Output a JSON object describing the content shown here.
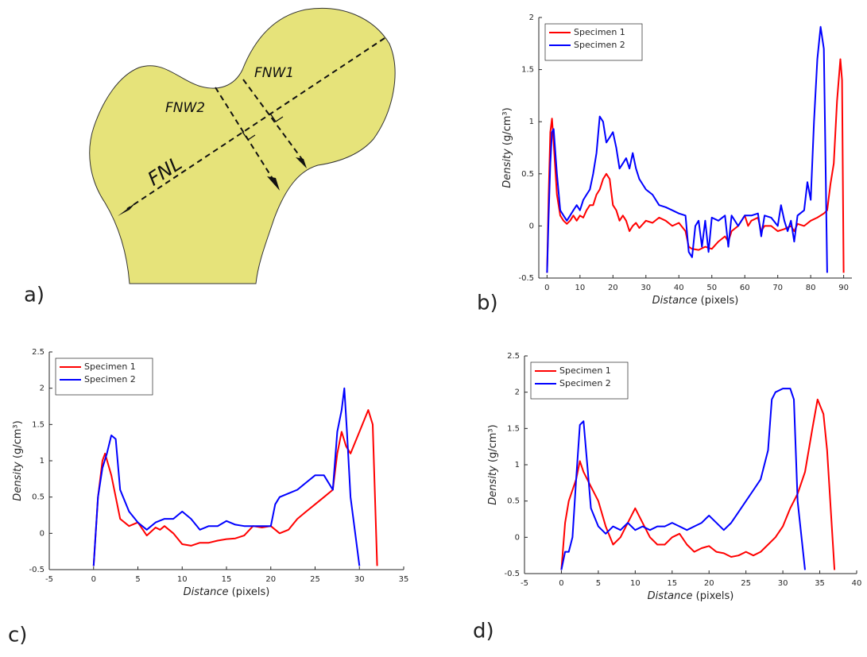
{
  "diagram": {
    "panel_label": "a)",
    "labels": {
      "fnw1": "FNW1",
      "fnw2": "FNW2",
      "fnl": "FNL"
    }
  },
  "chart_data": [
    {
      "type": "line",
      "panel_label": "b)",
      "xlabel": {
        "name": "Distance",
        "unit": "(pixels)"
      },
      "ylabel": {
        "name": "Density",
        "unit": "(g/cm³)"
      },
      "xlim": [
        -2.5,
        92.5
      ],
      "ylim": [
        -0.5,
        2
      ],
      "xticks": [
        0,
        10,
        20,
        30,
        40,
        50,
        60,
        70,
        80,
        90
      ],
      "yticks": [
        -0.5,
        0,
        0.5,
        1,
        1.5,
        2
      ],
      "grid": false,
      "legend": "upper left",
      "series": [
        {
          "name": "Specimen 1",
          "color": "#ff0000",
          "x": [
            0,
            0.5,
            1,
            1.5,
            2,
            3,
            4,
            5,
            6,
            7,
            8,
            9,
            10,
            11,
            12,
            13,
            14,
            15,
            16,
            17,
            18,
            19,
            20,
            21,
            22,
            23,
            24,
            25,
            26,
            27,
            28,
            30,
            32,
            34,
            36,
            38,
            40,
            42,
            43,
            44,
            46,
            48,
            50,
            52,
            54,
            55,
            56,
            58,
            60,
            61,
            62,
            64,
            65,
            66,
            68,
            70,
            72,
            74,
            75,
            76,
            78,
            80,
            82,
            84,
            85,
            86,
            87,
            88,
            89,
            89.5,
            90
          ],
          "values": [
            -0.45,
            0.3,
            0.9,
            1.03,
            0.8,
            0.3,
            0.1,
            0.05,
            0.02,
            0.05,
            0.1,
            0.05,
            0.1,
            0.08,
            0.15,
            0.2,
            0.2,
            0.3,
            0.35,
            0.45,
            0.5,
            0.45,
            0.2,
            0.15,
            0.05,
            0.1,
            0.05,
            -0.05,
            0,
            0.03,
            -0.02,
            0.05,
            0.03,
            0.08,
            0.05,
            0,
            0.03,
            -0.05,
            -0.2,
            -0.22,
            -0.23,
            -0.2,
            -0.22,
            -0.15,
            -0.1,
            -0.15,
            -0.05,
            0,
            0.1,
            0,
            0.05,
            0.08,
            -0.05,
            0,
            0,
            -0.05,
            -0.03,
            0,
            -0.05,
            0.02,
            0,
            0.05,
            0.08,
            0.12,
            0.15,
            0.4,
            0.6,
            1.2,
            1.6,
            1.4,
            -0.45
          ]
        },
        {
          "name": "Specimen 2",
          "color": "#0000ff",
          "x": [
            0,
            0.5,
            1,
            1.5,
            2,
            3,
            4,
            5,
            6,
            7,
            8,
            9,
            10,
            11,
            12,
            13,
            14,
            15,
            16,
            17,
            18,
            19,
            20,
            21,
            22,
            23,
            24,
            25,
            26,
            27,
            28,
            30,
            32,
            34,
            36,
            38,
            40,
            42,
            43,
            44,
            45,
            46,
            47,
            48,
            49,
            50,
            52,
            54,
            55,
            56,
            58,
            60,
            62,
            64,
            65,
            66,
            68,
            70,
            71,
            72,
            73,
            74,
            75,
            76,
            78,
            79,
            80,
            81,
            82,
            83,
            84,
            85
          ],
          "values": [
            -0.45,
            0.1,
            0.6,
            0.9,
            0.93,
            0.5,
            0.15,
            0.1,
            0.05,
            0.1,
            0.15,
            0.2,
            0.15,
            0.25,
            0.3,
            0.35,
            0.5,
            0.7,
            1.05,
            1,
            0.8,
            0.85,
            0.9,
            0.75,
            0.55,
            0.6,
            0.65,
            0.55,
            0.7,
            0.55,
            0.45,
            0.35,
            0.3,
            0.2,
            0.18,
            0.15,
            0.12,
            0.1,
            -0.25,
            -0.3,
            0,
            0.05,
            -0.2,
            0.05,
            -0.25,
            0.08,
            0.05,
            0.1,
            -0.2,
            0.1,
            0,
            0.1,
            0.1,
            0.12,
            -0.1,
            0.1,
            0.08,
            0,
            0.2,
            0.05,
            -0.05,
            0.05,
            -0.15,
            0.1,
            0.15,
            0.42,
            0.25,
            1,
            1.6,
            1.91,
            1.7,
            -0.45
          ]
        }
      ]
    },
    {
      "type": "line",
      "panel_label": "c)",
      "xlabel": {
        "name": "Distance",
        "unit": "(pixels)"
      },
      "ylabel": {
        "name": "Density",
        "unit": "(g/cm³)"
      },
      "xlim": [
        -5,
        35
      ],
      "ylim": [
        -0.5,
        2.5
      ],
      "xticks": [
        -5,
        0,
        5,
        10,
        15,
        20,
        25,
        30,
        35
      ],
      "yticks": [
        -0.5,
        0,
        0.5,
        1,
        1.5,
        2,
        2.5
      ],
      "grid": false,
      "legend": "upper left",
      "series": [
        {
          "name": "Specimen 1",
          "color": "#ff0000",
          "x": [
            0,
            0.5,
            1,
            1.3,
            2,
            3,
            4,
            5,
            6,
            7,
            7.5,
            8,
            9,
            10,
            11,
            12,
            13,
            14,
            15,
            16,
            17,
            18,
            19,
            20,
            21,
            22,
            23,
            24,
            25,
            26,
            27,
            27.5,
            28,
            28.5,
            29,
            30,
            31,
            31.5,
            32
          ],
          "values": [
            -0.45,
            0.5,
            1,
            1.1,
            0.8,
            0.2,
            0.1,
            0.15,
            -0.03,
            0.08,
            0.05,
            0.1,
            0,
            -0.15,
            -0.17,
            -0.13,
            -0.13,
            -0.1,
            -0.08,
            -0.07,
            -0.03,
            0.1,
            0.08,
            0.1,
            0,
            0.05,
            0.2,
            0.3,
            0.4,
            0.5,
            0.6,
            1.1,
            1.4,
            1.2,
            1.1,
            1.4,
            1.7,
            1.5,
            -0.45
          ]
        },
        {
          "name": "Specimen 2",
          "color": "#0000ff",
          "x": [
            0,
            0.5,
            1,
            1.5,
            2,
            2.5,
            3,
            4,
            5,
            6,
            7,
            8,
            9,
            10,
            11,
            12,
            13,
            14,
            15,
            16,
            17,
            18,
            19,
            20,
            20.5,
            21,
            22,
            23,
            24,
            25,
            26,
            27,
            27.5,
            28,
            28.3,
            28.6,
            29,
            30
          ],
          "values": [
            -0.45,
            0.5,
            0.9,
            1.1,
            1.35,
            1.3,
            0.6,
            0.3,
            0.15,
            0.05,
            0.15,
            0.2,
            0.2,
            0.3,
            0.2,
            0.05,
            0.1,
            0.1,
            0.17,
            0.12,
            0.1,
            0.1,
            0.1,
            0.1,
            0.4,
            0.5,
            0.55,
            0.6,
            0.7,
            0.8,
            0.8,
            0.6,
            1.4,
            1.7,
            2,
            1.4,
            0.5,
            -0.45
          ]
        }
      ]
    },
    {
      "type": "line",
      "panel_label": "d)",
      "xlabel": {
        "name": "Distance",
        "unit": "(pixels)"
      },
      "ylabel": {
        "name": "Density",
        "unit": "(g/cm³)"
      },
      "xlim": [
        -5,
        40
      ],
      "ylim": [
        -0.5,
        2.5
      ],
      "xticks": [
        -5,
        0,
        5,
        10,
        15,
        20,
        25,
        30,
        35,
        40
      ],
      "yticks": [
        -0.5,
        0,
        0.5,
        1,
        1.5,
        2,
        2.5
      ],
      "grid": false,
      "legend": "upper left",
      "series": [
        {
          "name": "Specimen 1",
          "color": "#ff0000",
          "x": [
            0,
            0.5,
            1,
            2,
            2.5,
            3,
            4,
            5,
            6,
            7,
            8,
            9,
            10,
            11,
            12,
            13,
            14,
            15,
            16,
            17,
            18,
            19,
            20,
            21,
            22,
            23,
            24,
            25,
            26,
            27,
            28,
            29,
            30,
            31,
            32,
            33,
            34,
            34.7,
            35.5,
            36,
            37
          ],
          "values": [
            -0.45,
            0.2,
            0.5,
            0.8,
            1.05,
            0.9,
            0.7,
            0.5,
            0.15,
            -0.1,
            0,
            0.2,
            0.4,
            0.2,
            0,
            -0.1,
            -0.1,
            0,
            0.05,
            -0.1,
            -0.2,
            -0.15,
            -0.12,
            -0.2,
            -0.22,
            -0.27,
            -0.25,
            -0.2,
            -0.25,
            -0.2,
            -0.1,
            0,
            0.15,
            0.4,
            0.6,
            0.9,
            1.5,
            1.9,
            1.7,
            1.2,
            -0.45
          ]
        },
        {
          "name": "Specimen 2",
          "color": "#0000ff",
          "x": [
            0,
            0.5,
            1,
            1.5,
            2,
            2.5,
            3,
            3.5,
            4,
            5,
            6,
            7,
            8,
            9,
            10,
            11,
            12,
            13,
            14,
            15,
            16,
            17,
            18,
            19,
            20,
            21,
            22,
            23,
            24,
            25,
            26,
            27,
            28,
            28.5,
            29,
            30,
            31,
            31.5,
            32,
            33
          ],
          "values": [
            -0.45,
            -0.2,
            -0.2,
            0,
            0.8,
            1.55,
            1.6,
            1,
            0.4,
            0.15,
            0.05,
            0.15,
            0.1,
            0.2,
            0.1,
            0.15,
            0.1,
            0.15,
            0.15,
            0.2,
            0.15,
            0.1,
            0.15,
            0.2,
            0.3,
            0.2,
            0.1,
            0.2,
            0.35,
            0.5,
            0.65,
            0.8,
            1.2,
            1.9,
            2,
            2.05,
            2.05,
            1.9,
            0.5,
            -0.45
          ]
        }
      ]
    }
  ]
}
